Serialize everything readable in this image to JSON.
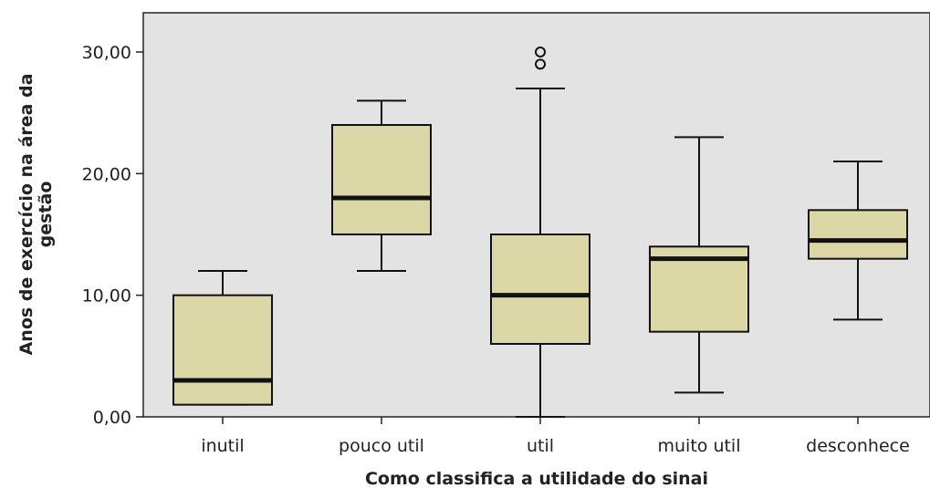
{
  "chart_data": {
    "type": "boxplot",
    "title": "",
    "xlabel": "Como classifica a utilidade do sinai",
    "ylabel_lines": [
      "Anos de exercício na área da",
      "gestão"
    ],
    "ylim": [
      0,
      30
    ],
    "yticks": [
      0,
      10,
      20,
      30
    ],
    "ytick_labels": [
      "0,00",
      "10,00",
      "20,00",
      "30,00"
    ],
    "grid": false,
    "colors": {
      "plot_background": "#e3e3e3",
      "box_fill": "#dcd7a6",
      "line": "#111111"
    },
    "categories": [
      "inutil",
      "pouco util",
      "util",
      "muito util",
      "desconhece"
    ],
    "boxes": [
      {
        "category": "inutil",
        "min": 1,
        "q1": 1,
        "median": 3,
        "q3": 10,
        "max": 12,
        "outliers": []
      },
      {
        "category": "pouco util",
        "min": 12,
        "q1": 15,
        "median": 18,
        "q3": 24,
        "max": 26,
        "outliers": []
      },
      {
        "category": "util",
        "min": 0,
        "q1": 6,
        "median": 10,
        "q3": 15,
        "max": 27,
        "outliers": [
          29,
          30
        ]
      },
      {
        "category": "muito util",
        "min": 2,
        "q1": 7,
        "median": 13,
        "q3": 14,
        "max": 23,
        "outliers": []
      },
      {
        "category": "desconhece",
        "min": 8,
        "q1": 13,
        "median": 14.5,
        "q3": 17,
        "max": 21,
        "outliers": []
      }
    ]
  }
}
